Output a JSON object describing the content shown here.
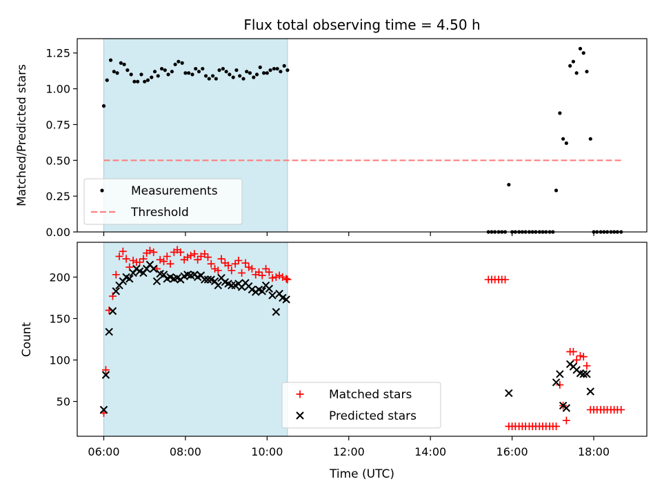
{
  "chart_data": {
    "type": "scatter",
    "title": "Flux total observing time = 4.50 h",
    "xlabel": "Time (UTC)",
    "xlim_hours": [
      5.35,
      19.3
    ],
    "x_ticks": [
      {
        "value": 6,
        "label": "06:00"
      },
      {
        "value": 8,
        "label": "08:00"
      },
      {
        "value": 10,
        "label": "10:00"
      },
      {
        "value": 12,
        "label": "12:00"
      },
      {
        "value": 14,
        "label": "14:00"
      },
      {
        "value": 16,
        "label": "16:00"
      },
      {
        "value": 18,
        "label": "18:00"
      }
    ],
    "highlight": {
      "from": 6.0,
      "to": 10.5,
      "color": "#add8e6"
    },
    "panels": [
      {
        "ylabel": "Matched/Predicted stars",
        "ylim": [
          0,
          1.35
        ],
        "y_ticks": [
          "0.00",
          "0.25",
          "0.50",
          "0.75",
          "1.00",
          "1.25"
        ],
        "legend_position": "lower-left",
        "series": [
          {
            "name": "Measurements",
            "marker": "dot",
            "color": "#000000",
            "x": [
              6.0,
              6.08,
              6.17,
              6.25,
              6.33,
              6.42,
              6.5,
              6.58,
              6.67,
              6.75,
              6.83,
              6.92,
              7.0,
              7.08,
              7.17,
              7.25,
              7.33,
              7.42,
              7.5,
              7.58,
              7.67,
              7.75,
              7.83,
              7.92,
              8.0,
              8.08,
              8.17,
              8.25,
              8.33,
              8.42,
              8.5,
              8.58,
              8.67,
              8.75,
              8.83,
              8.92,
              9.0,
              9.08,
              9.17,
              9.25,
              9.33,
              9.42,
              9.5,
              9.58,
              9.67,
              9.75,
              9.83,
              9.92,
              10.0,
              10.08,
              10.17,
              10.25,
              10.33,
              10.42,
              10.5,
              15.42,
              15.5,
              15.58,
              15.67,
              15.75,
              15.83,
              15.92,
              16.0,
              16.08,
              16.17,
              16.25,
              16.33,
              16.42,
              16.5,
              16.58,
              16.67,
              16.75,
              16.83,
              16.92,
              17.0,
              17.08,
              17.17,
              17.25,
              17.33,
              17.42,
              17.5,
              17.58,
              17.67,
              17.75,
              17.83,
              17.92,
              18.0,
              18.08,
              18.17,
              18.25,
              18.33,
              18.42,
              18.5,
              18.58,
              18.67
            ],
            "y": [
              0.88,
              1.06,
              1.2,
              1.12,
              1.11,
              1.18,
              1.17,
              1.13,
              1.1,
              1.05,
              1.05,
              1.1,
              1.05,
              1.06,
              1.08,
              1.12,
              1.09,
              1.14,
              1.13,
              1.1,
              1.12,
              1.17,
              1.19,
              1.18,
              1.11,
              1.11,
              1.1,
              1.14,
              1.12,
              1.14,
              1.09,
              1.07,
              1.09,
              1.07,
              1.13,
              1.14,
              1.12,
              1.1,
              1.08,
              1.13,
              1.09,
              1.07,
              1.12,
              1.11,
              1.08,
              1.1,
              1.15,
              1.11,
              1.11,
              1.13,
              1.14,
              1.14,
              1.12,
              1.16,
              1.13,
              0.0,
              0.0,
              0.0,
              0.0,
              0.0,
              0.0,
              0.33,
              0.0,
              0.0,
              0.0,
              0.0,
              0.0,
              0.0,
              0.0,
              0.0,
              0.0,
              0.0,
              0.0,
              0.0,
              0.0,
              0.29,
              0.83,
              0.65,
              0.62,
              1.16,
              1.19,
              1.11,
              1.28,
              1.25,
              1.12,
              0.65,
              0.0,
              0.0,
              0.0,
              0.0,
              0.0,
              0.0,
              0.0,
              0.0,
              0.0
            ]
          },
          {
            "name": "Threshold",
            "marker": "dashed-line",
            "color": "#ff7f7f",
            "x": [
              6.0,
              18.67
            ],
            "y": [
              0.5,
              0.5
            ]
          }
        ]
      },
      {
        "ylabel": "Count",
        "ylim": [
          8,
          242
        ],
        "y_ticks": [
          "50",
          "100",
          "150",
          "200"
        ],
        "legend_position": "lower-center",
        "series": [
          {
            "name": "Matched stars",
            "marker": "plus",
            "color": "#ff0000",
            "x": [
              6.0,
              6.05,
              6.13,
              6.22,
              6.3,
              6.38,
              6.47,
              6.55,
              6.63,
              6.72,
              6.8,
              6.88,
              6.97,
              7.05,
              7.13,
              7.22,
              7.3,
              7.38,
              7.47,
              7.55,
              7.63,
              7.72,
              7.8,
              7.88,
              7.97,
              8.05,
              8.13,
              8.22,
              8.3,
              8.38,
              8.47,
              8.55,
              8.63,
              8.72,
              8.8,
              8.88,
              8.97,
              9.05,
              9.13,
              9.22,
              9.3,
              9.38,
              9.47,
              9.55,
              9.63,
              9.72,
              9.8,
              9.88,
              9.97,
              10.05,
              10.13,
              10.22,
              10.3,
              10.38,
              10.47,
              10.5,
              15.42,
              15.5,
              15.58,
              15.67,
              15.75,
              15.83,
              15.92,
              16.0,
              16.08,
              16.17,
              16.25,
              16.33,
              16.42,
              16.5,
              16.58,
              16.67,
              16.75,
              16.83,
              16.92,
              17.0,
              17.08,
              17.17,
              17.25,
              17.33,
              17.42,
              17.5,
              17.58,
              17.67,
              17.75,
              17.83,
              17.92,
              18.0,
              18.08,
              18.17,
              18.25,
              18.33,
              18.42,
              18.5,
              18.58,
              18.67
            ],
            "y": [
              36,
              88,
              160,
              177,
              203,
              225,
              231,
              222,
              212,
              220,
              218,
              218,
              222,
              229,
              232,
              230,
              210,
              221,
              219,
              225,
              216,
              230,
              233,
              230,
              221,
              224,
              226,
              228,
              221,
              225,
              228,
              224,
              216,
              210,
              208,
              222,
              217,
              214,
              208,
              216,
              220,
              205,
              217,
              212,
              210,
              203,
              206,
              202,
              210,
              206,
              199,
              200,
              202,
              200,
              198,
              197,
              197,
              197,
              197,
              197,
              197,
              197,
              20,
              20,
              20,
              20,
              20,
              20,
              20,
              20,
              20,
              20,
              20,
              20,
              20,
              20,
              20,
              70,
              45,
              27,
              110,
              110,
              100,
              105,
              104,
              93,
              40,
              40,
              40,
              40,
              40,
              40,
              40,
              40,
              40,
              40
            ]
          },
          {
            "name": "Predicted stars",
            "marker": "x",
            "color": "#000000",
            "x": [
              6.0,
              6.05,
              6.13,
              6.22,
              6.3,
              6.38,
              6.47,
              6.55,
              6.63,
              6.72,
              6.8,
              6.88,
              6.97,
              7.05,
              7.13,
              7.22,
              7.3,
              7.38,
              7.47,
              7.55,
              7.63,
              7.72,
              7.8,
              7.88,
              7.97,
              8.05,
              8.13,
              8.22,
              8.3,
              8.38,
              8.47,
              8.55,
              8.63,
              8.72,
              8.8,
              8.88,
              8.97,
              9.05,
              9.13,
              9.22,
              9.3,
              9.38,
              9.47,
              9.55,
              9.63,
              9.72,
              9.8,
              9.88,
              9.97,
              10.05,
              10.13,
              10.22,
              10.3,
              10.38,
              10.47,
              15.92,
              17.08,
              17.17,
              17.25,
              17.33,
              17.42,
              17.5,
              17.58,
              17.67,
              17.75,
              17.83,
              17.92
            ],
            "y": [
              40,
              82,
              134,
              159,
              183,
              190,
              195,
              200,
              198,
              205,
              210,
              207,
              205,
              210,
              215,
              210,
              195,
              204,
              203,
              198,
              200,
              198,
              199,
              197,
              201,
              203,
              202,
              203,
              200,
              202,
              197,
              197,
              197,
              195,
              190,
              199,
              194,
              192,
              190,
              190,
              192,
              188,
              193,
              189,
              185,
              182,
              185,
              183,
              190,
              186,
              178,
              158,
              180,
              175,
              173,
              60,
              73,
              83,
              45,
              42,
              95,
              92,
              88,
              84,
              83,
              83,
              62
            ]
          }
        ]
      }
    ]
  }
}
